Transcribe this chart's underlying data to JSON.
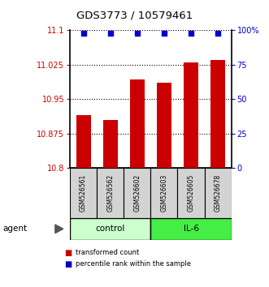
{
  "title": "GDS3773 / 10579461",
  "samples": [
    "GSM526561",
    "GSM526562",
    "GSM526602",
    "GSM526603",
    "GSM526605",
    "GSM526678"
  ],
  "bar_values": [
    10.915,
    10.905,
    10.993,
    10.985,
    11.03,
    11.035
  ],
  "percentile_values": [
    98,
    98,
    98,
    98,
    98,
    98
  ],
  "bar_color": "#cc0000",
  "dot_color": "#0000cc",
  "ylim_left": [
    10.8,
    11.1
  ],
  "ylim_right": [
    0,
    100
  ],
  "yticks_left": [
    10.8,
    10.875,
    10.95,
    11.025,
    11.1
  ],
  "ytick_labels_left": [
    "10.8",
    "10.875",
    "10.95",
    "11.025",
    "11.1"
  ],
  "yticks_right": [
    0,
    25,
    50,
    75,
    100
  ],
  "ytick_labels_right": [
    "0",
    "25",
    "50",
    "75",
    "100%"
  ],
  "groups": [
    {
      "label": "control",
      "indices": [
        0,
        1,
        2
      ],
      "color": "#ccffcc"
    },
    {
      "label": "IL-6",
      "indices": [
        3,
        4,
        5
      ],
      "color": "#44ee44"
    }
  ],
  "agent_label": "agent",
  "legend_items": [
    {
      "label": "transformed count",
      "color": "#cc0000"
    },
    {
      "label": "percentile rank within the sample",
      "color": "#0000cc"
    }
  ],
  "background_color": "#ffffff",
  "bar_width": 0.55
}
